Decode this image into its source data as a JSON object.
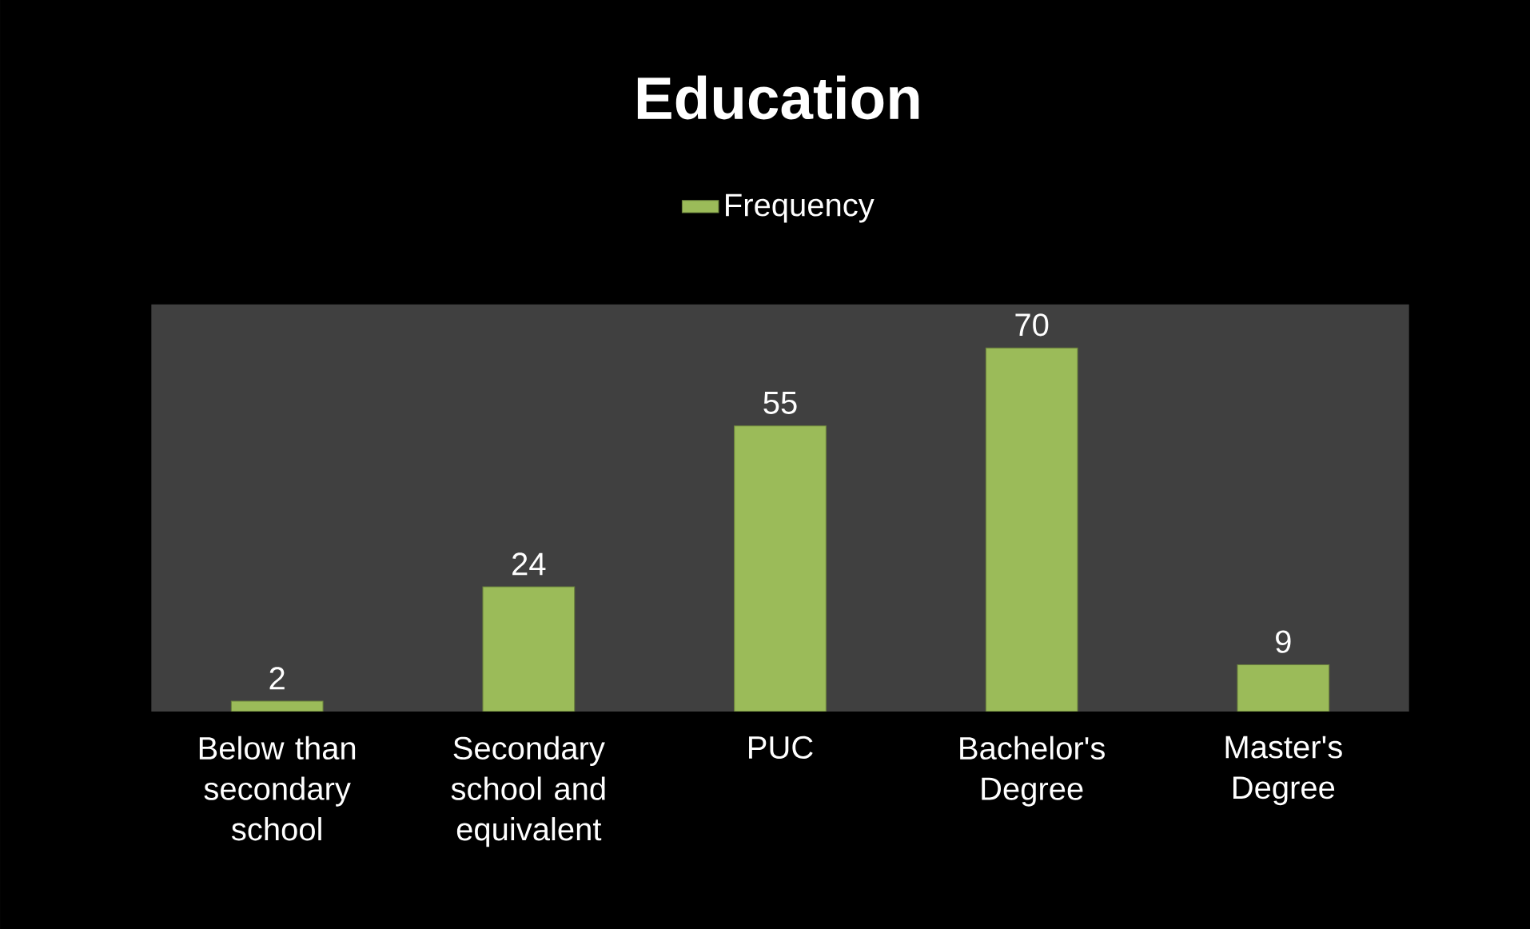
{
  "chart_data": {
    "type": "bar",
    "title": "Education",
    "categories": [
      "Below than secondary school",
      "Secondary school and equivalent",
      "PUC",
      "Bachelor's Degree",
      "Master's Degree"
    ],
    "series": [
      {
        "name": "Frequency",
        "color": "#9bbb59",
        "values": [
          2,
          24,
          55,
          70,
          9
        ]
      }
    ],
    "data_labels": true,
    "legend": "top"
  }
}
